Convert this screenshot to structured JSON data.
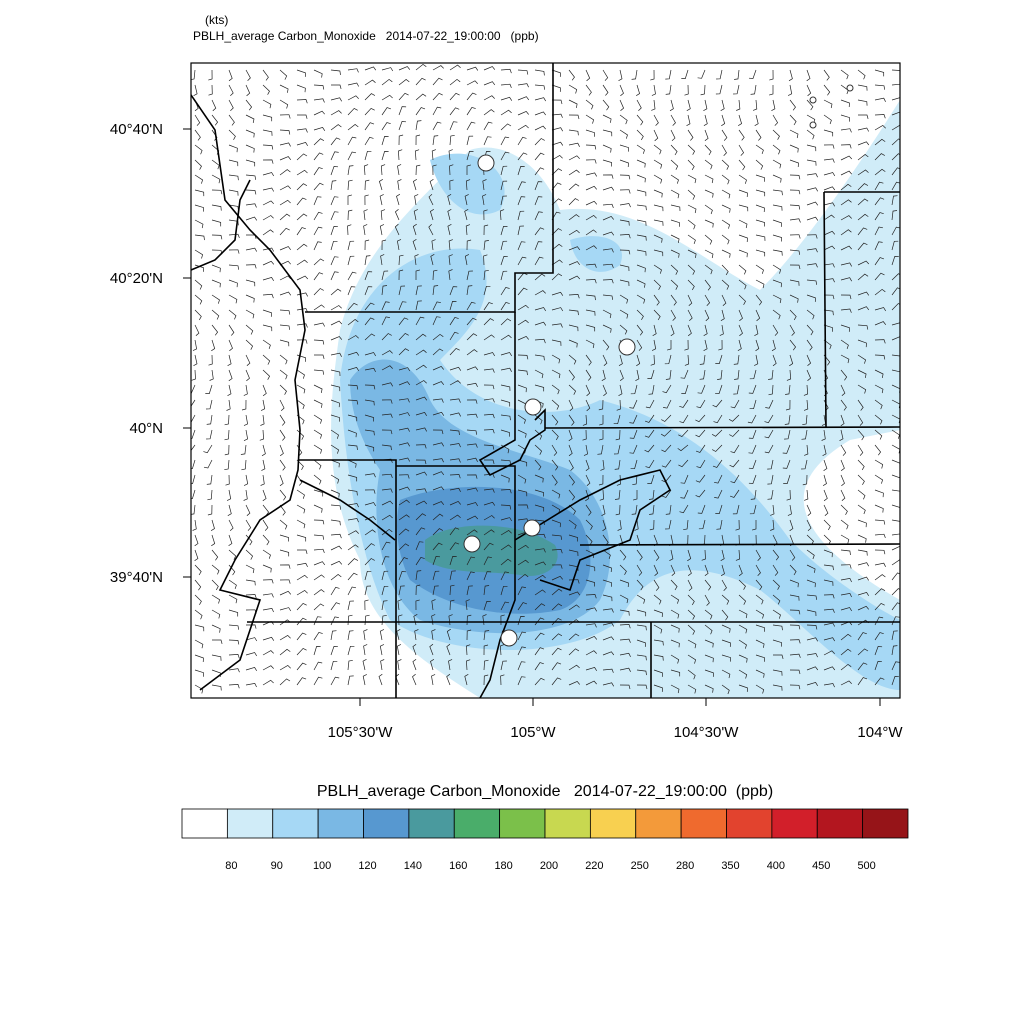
{
  "header": {
    "units": "(kts)",
    "title": "PBLH_average Carbon_Monoxide   2014-07-22_19:00:00   (ppb)"
  },
  "map": {
    "lat_labels": [
      "40°40'N",
      "40°20'N",
      "40°N",
      "39°40'N"
    ],
    "lon_labels": [
      "105°30'W",
      "105°W",
      "104°30'W",
      "104°W"
    ]
  },
  "colorbar": {
    "title": "PBLH_average Carbon_Monoxide   2014-07-22_19:00:00  (ppb)",
    "colors": [
      "#ffffff",
      "#d0ecf8",
      "#a6d8f5",
      "#7ab8e4",
      "#5798d0",
      "#4a9a9e",
      "#4aad6a",
      "#7bc04a",
      "#c8d850",
      "#f8d050",
      "#f39a3a",
      "#ef6a2e",
      "#e2432e",
      "#d21f2a",
      "#b3161f",
      "#961418"
    ],
    "labels": [
      80,
      90,
      100,
      120,
      140,
      160,
      180,
      200,
      220,
      250,
      280,
      350,
      400,
      450,
      500
    ]
  }
}
